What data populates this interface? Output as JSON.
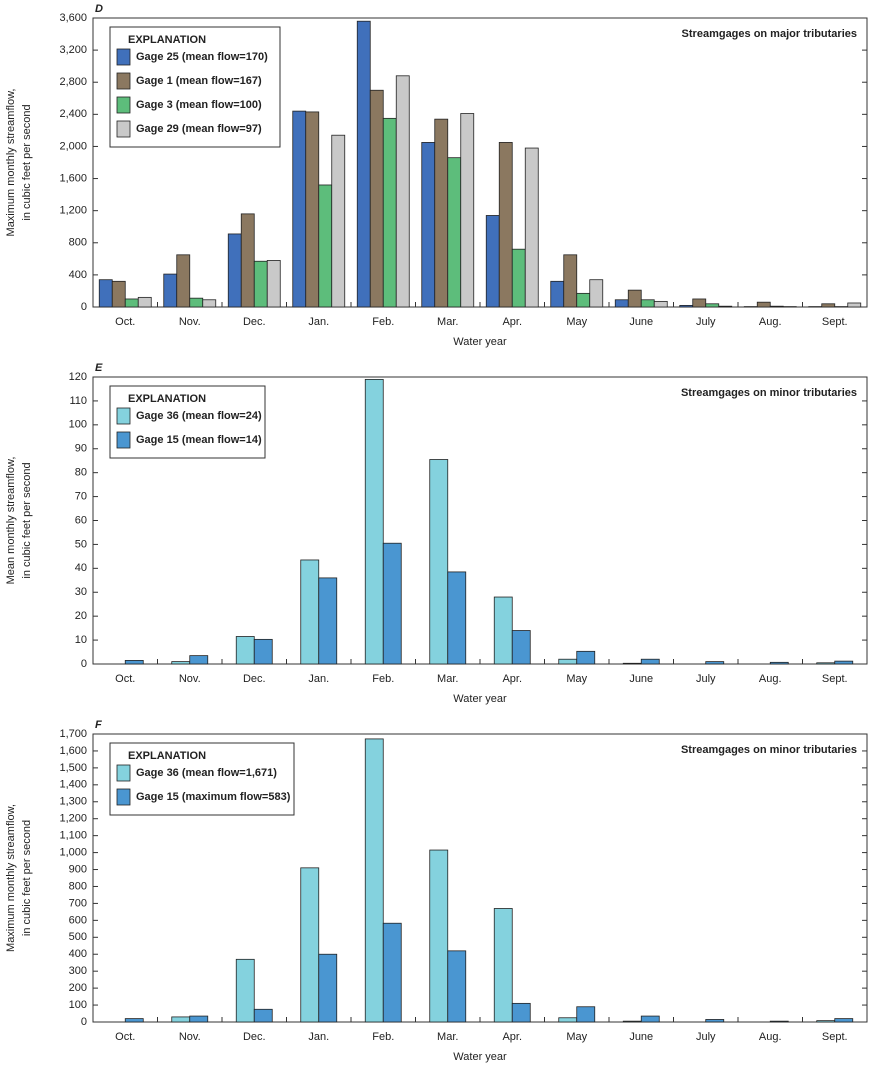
{
  "chart_data": [
    {
      "type": "bar",
      "panel_label": "D",
      "annotation": "Streamgages on major tributaries",
      "legend_title": "EXPLANATION",
      "ylabel": [
        "Maximum monthly streamflow,",
        "in cubic feet per second"
      ],
      "xlabel": "Water year",
      "categories": [
        "Oct.",
        "Nov.",
        "Dec.",
        "Jan.",
        "Feb.",
        "Mar.",
        "Apr.",
        "May",
        "June",
        "July",
        "Aug.",
        "Sept."
      ],
      "series": [
        {
          "name": "Gage 25 (mean flow=170)",
          "color": "#4070bb",
          "values": [
            340,
            410,
            910,
            2440,
            3560,
            2050,
            1140,
            320,
            90,
            20,
            5,
            5
          ]
        },
        {
          "name": "Gage 1 (mean flow=167)",
          "color": "#8b7860",
          "values": [
            320,
            650,
            1160,
            2430,
            2700,
            2340,
            2050,
            650,
            210,
            100,
            60,
            40
          ]
        },
        {
          "name": "Gage 3 (mean flow=100)",
          "color": "#5dbd7b",
          "values": [
            100,
            110,
            570,
            1520,
            2350,
            1860,
            720,
            170,
            90,
            40,
            10,
            5
          ]
        },
        {
          "name": "Gage 29 (mean flow=97)",
          "color": "#c9c9c9",
          "values": [
            120,
            90,
            580,
            2140,
            2880,
            2410,
            1980,
            340,
            70,
            10,
            5,
            50
          ]
        }
      ],
      "ylim": [
        0,
        3600
      ],
      "yticks": [
        0,
        400,
        800,
        {
          "value": 1200,
          "label": "1,200"
        },
        {
          "value": 1600,
          "label": "1,600"
        },
        {
          "value": 2000,
          "label": "2,000"
        },
        {
          "value": 2400,
          "label": "2,400"
        },
        {
          "value": 2800,
          "label": "2,800"
        },
        {
          "value": 3200,
          "label": "3,200"
        },
        {
          "value": 3600,
          "label": "3,600"
        }
      ]
    },
    {
      "type": "bar",
      "panel_label": "E",
      "annotation": "Streamgages on minor tributaries",
      "legend_title": "EXPLANATION",
      "ylabel": [
        "Mean monthly streamflow,",
        "in cubic feet per second"
      ],
      "xlabel": "Water year",
      "categories": [
        "Oct.",
        "Nov.",
        "Dec.",
        "Jan.",
        "Feb.",
        "Mar.",
        "Apr.",
        "May",
        "June",
        "July",
        "Aug.",
        "Sept."
      ],
      "series": [
        {
          "name": "Gage 36 (mean flow=24)",
          "color": "#84d2de",
          "values": [
            0,
            1,
            11.5,
            43.5,
            119,
            85.5,
            28,
            2,
            0.3,
            0,
            0,
            0.5
          ]
        },
        {
          "name": "Gage 15 (mean flow=14)",
          "color": "#4a96d1",
          "values": [
            1.5,
            3.5,
            10.3,
            36,
            50.5,
            38.5,
            14,
            5.3,
            2,
            1,
            0.7,
            1.2
          ]
        }
      ],
      "ylim": [
        0,
        120
      ],
      "yticks": [
        0,
        10,
        20,
        30,
        40,
        50,
        60,
        70,
        80,
        90,
        100,
        110,
        120
      ]
    },
    {
      "type": "bar",
      "panel_label": "F",
      "annotation": "Streamgages on minor tributaries",
      "legend_title": "EXPLANATION",
      "ylabel": [
        "Maximum monthly streamflow,",
        "in cubic feet per second"
      ],
      "xlabel": "Water year",
      "categories": [
        "Oct.",
        "Nov.",
        "Dec.",
        "Jan.",
        "Feb.",
        "Mar.",
        "Apr.",
        "May",
        "June",
        "July",
        "Aug.",
        "Sept."
      ],
      "series": [
        {
          "name": "Gage 36 (mean flow=1,671)",
          "color": "#84d2de",
          "values": [
            0,
            30,
            370,
            910,
            1671,
            1015,
            670,
            25,
            5,
            0,
            0,
            8
          ]
        },
        {
          "name": "Gage 15 (maximum flow=583)",
          "color": "#4a96d1",
          "values": [
            20,
            35,
            75,
            400,
            583,
            420,
            110,
            90,
            35,
            15,
            5,
            20
          ]
        }
      ],
      "ylim": [
        0,
        1700
      ],
      "yticks": [
        0,
        100,
        200,
        300,
        400,
        500,
        600,
        700,
        800,
        900,
        {
          "value": 1000,
          "label": "1,000"
        },
        {
          "value": 1100,
          "label": "1,100"
        },
        {
          "value": 1200,
          "label": "1,200"
        },
        {
          "value": 1300,
          "label": "1,300"
        },
        {
          "value": 1400,
          "label": "1,400"
        },
        {
          "value": 1500,
          "label": "1,500"
        },
        {
          "value": 1600,
          "label": "1,600"
        },
        {
          "value": 1700,
          "label": "1,700"
        }
      ]
    }
  ]
}
